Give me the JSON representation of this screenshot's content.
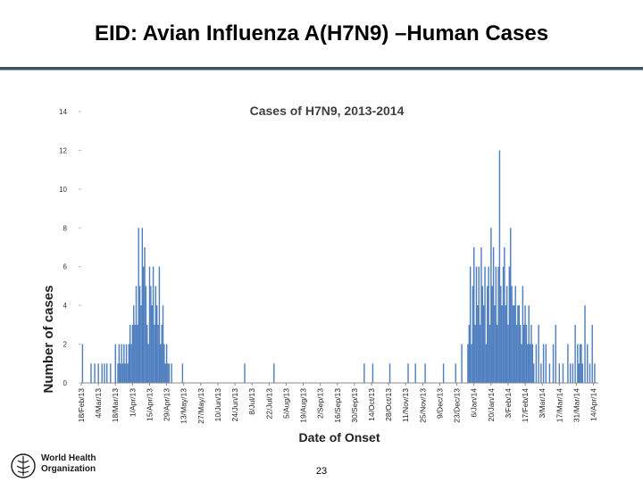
{
  "slide": {
    "title": "EID: Avian Influenza A(H7N9) –Human Cases",
    "page_number": "23",
    "org_line1": "World Health",
    "org_line2": "Organization"
  },
  "colors": {
    "bar": "#4f7fbf",
    "rule": "#3b5168",
    "axis": "#888888"
  },
  "chart_data": {
    "type": "bar",
    "title": "Cases of H7N9, 2013-2014",
    "xlabel": "Date of Onset",
    "ylabel": "Number of cases",
    "ylim": [
      0,
      14
    ],
    "yticks": [
      0,
      2,
      4,
      6,
      8,
      10,
      12,
      14
    ],
    "x_start": "2013-02-18",
    "x_end": "2014-04-18",
    "x_tick_labels": [
      "18/Feb/13",
      "4/Mar/13",
      "18/Mar/13",
      "1/Apr/13",
      "15/Apr/13",
      "29/Apr/13",
      "13/May/13",
      "27/May/13",
      "10/Jun/13",
      "24/Jun/13",
      "8/Jul/13",
      "22/Jul/13",
      "5/Aug/13",
      "19/Aug/13",
      "2/Sep/13",
      "16/Sep/13",
      "30/Sep/13",
      "14/Oct/13",
      "28/Oct/13",
      "11/Nov/13",
      "25/Nov/13",
      "9/Dec/13",
      "23/Dec/13",
      "6/Jan/14",
      "20/Jan/14",
      "3/Feb/14",
      "17/Feb/14",
      "3/Mar/14",
      "17/Mar/14",
      "31/Mar/14",
      "14/Apr/14"
    ],
    "series": [
      {
        "name": "Cases",
        "dates": [
          "2013-02-19",
          "2013-02-26",
          "2013-03-01",
          "2013-03-04",
          "2013-03-07",
          "2013-03-09",
          "2013-03-11",
          "2013-03-14",
          "2013-03-18",
          "2013-03-20",
          "2013-03-21",
          "2013-03-22",
          "2013-03-23",
          "2013-03-24",
          "2013-03-25",
          "2013-03-26",
          "2013-03-27",
          "2013-03-28",
          "2013-03-29",
          "2013-03-30",
          "2013-03-31",
          "2013-04-01",
          "2013-04-02",
          "2013-04-03",
          "2013-04-04",
          "2013-04-05",
          "2013-04-06",
          "2013-04-07",
          "2013-04-08",
          "2013-04-09",
          "2013-04-10",
          "2013-04-11",
          "2013-04-12",
          "2013-04-13",
          "2013-04-14",
          "2013-04-15",
          "2013-04-16",
          "2013-04-17",
          "2013-04-18",
          "2013-04-19",
          "2013-04-20",
          "2013-04-21",
          "2013-04-22",
          "2013-04-23",
          "2013-04-24",
          "2013-04-25",
          "2013-04-26",
          "2013-04-27",
          "2013-04-28",
          "2013-04-29",
          "2013-04-30",
          "2013-05-01",
          "2013-05-03",
          "2013-05-12",
          "2013-07-02",
          "2013-07-26",
          "2013-10-08",
          "2013-10-15",
          "2013-10-29",
          "2013-11-13",
          "2013-11-19",
          "2013-11-27",
          "2013-12-12",
          "2013-12-22",
          "2013-12-27",
          "2014-01-01",
          "2014-01-02",
          "2014-01-03",
          "2014-01-04",
          "2014-01-05",
          "2014-01-06",
          "2014-01-07",
          "2014-01-08",
          "2014-01-09",
          "2014-01-10",
          "2014-01-11",
          "2014-01-12",
          "2014-01-13",
          "2014-01-14",
          "2014-01-15",
          "2014-01-16",
          "2014-01-17",
          "2014-01-18",
          "2014-01-19",
          "2014-01-20",
          "2014-01-21",
          "2014-01-22",
          "2014-01-23",
          "2014-01-24",
          "2014-01-25",
          "2014-01-26",
          "2014-01-27",
          "2014-01-28",
          "2014-01-29",
          "2014-01-30",
          "2014-01-31",
          "2014-02-01",
          "2014-02-02",
          "2014-02-03",
          "2014-02-04",
          "2014-02-05",
          "2014-02-06",
          "2014-02-07",
          "2014-02-08",
          "2014-02-09",
          "2014-02-10",
          "2014-02-11",
          "2014-02-12",
          "2014-02-13",
          "2014-02-14",
          "2014-02-15",
          "2014-02-16",
          "2014-02-17",
          "2014-02-18",
          "2014-02-19",
          "2014-02-20",
          "2014-02-21",
          "2014-02-22",
          "2014-02-23",
          "2014-02-24",
          "2014-02-26",
          "2014-02-28",
          "2014-03-02",
          "2014-03-04",
          "2014-03-06",
          "2014-03-09",
          "2014-03-12",
          "2014-03-14",
          "2014-03-17",
          "2014-03-20",
          "2014-03-24",
          "2014-03-26",
          "2014-03-28",
          "2014-03-30",
          "2014-04-01",
          "2014-04-02",
          "2014-04-03",
          "2014-04-04",
          "2014-04-05",
          "2014-04-07",
          "2014-04-09",
          "2014-04-11",
          "2014-04-13",
          "2014-04-15"
        ],
        "values": [
          2,
          1,
          1,
          1,
          1,
          1,
          1,
          1,
          2,
          1,
          2,
          1,
          2,
          1,
          2,
          1,
          2,
          1,
          2,
          3,
          2,
          3,
          4,
          3,
          5,
          3,
          8,
          5,
          4,
          8,
          6,
          7,
          5,
          3,
          2,
          6,
          5,
          4,
          6,
          3,
          5,
          4,
          3,
          6,
          2,
          3,
          4,
          2,
          1,
          2,
          1,
          1,
          1,
          1,
          1,
          1,
          1,
          1,
          1,
          1,
          1,
          1,
          1,
          1,
          2,
          2,
          3,
          6,
          2,
          5,
          7,
          3,
          6,
          4,
          6,
          3,
          7,
          5,
          4,
          6,
          2,
          5,
          6,
          3,
          8,
          5,
          7,
          4,
          6,
          3,
          6,
          12,
          5,
          4,
          6,
          7,
          4,
          5,
          3,
          6,
          8,
          5,
          4,
          4,
          5,
          3,
          4,
          4,
          3,
          2,
          5,
          3,
          4,
          3,
          2,
          4,
          2,
          3,
          2,
          1,
          2,
          3,
          1,
          2,
          2,
          1,
          2,
          3,
          1,
          1,
          2,
          1,
          1,
          3,
          2,
          1,
          2,
          2,
          1,
          4,
          2,
          1,
          3,
          1
        ]
      }
    ]
  }
}
